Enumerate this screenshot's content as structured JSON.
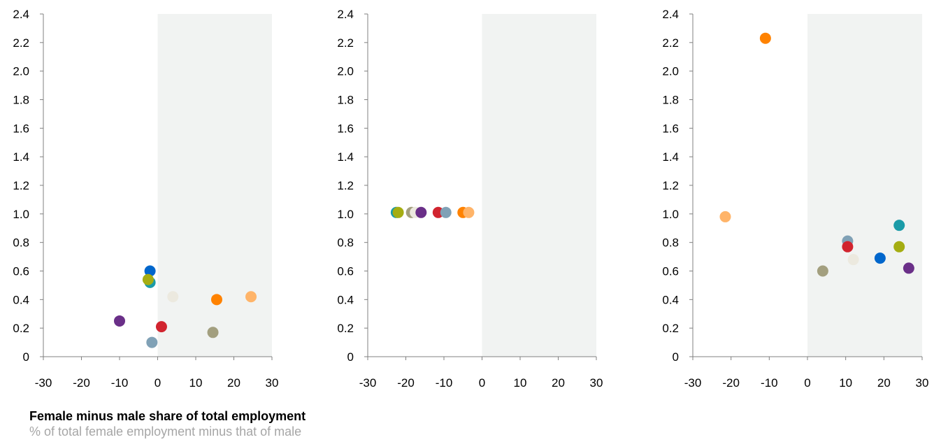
{
  "caption": {
    "title": "Female minus male share of total employment",
    "subtitle": "% of total female employment minus that of male"
  },
  "colors": {
    "shade": "#f1f3f2",
    "axis": "#808080",
    "palette": [
      "#0066cc",
      "#1b9ba8",
      "#a5ad12",
      "#ece9df",
      "#ff8200",
      "#ffb469",
      "#d1242f",
      "#80a1b6",
      "#a39f7f",
      "#6a2f88"
    ]
  },
  "chart_data": [
    {
      "type": "scatter",
      "xlim": [
        -30,
        30
      ],
      "ylim": [
        0,
        2.4
      ],
      "x_ticks": [
        "-30",
        "-20",
        "-10",
        "0",
        "10",
        "20",
        "30"
      ],
      "y_ticks": [
        "0",
        "0.2",
        "0.4",
        "0.6",
        "0.8",
        "1.0",
        "1.2",
        "1.4",
        "1.6",
        "1.8",
        "2.0",
        "2.2",
        "2.4"
      ],
      "shaded_region": "x > 0",
      "points": [
        {
          "x": -2,
          "y": 0.6,
          "color": "#0066cc"
        },
        {
          "x": -2,
          "y": 0.52,
          "color": "#1b9ba8"
        },
        {
          "x": -2.5,
          "y": 0.54,
          "color": "#a5ad12"
        },
        {
          "x": 4,
          "y": 0.42,
          "color": "#ece9df"
        },
        {
          "x": 15.5,
          "y": 0.4,
          "color": "#ff8200"
        },
        {
          "x": 24.5,
          "y": 0.42,
          "color": "#ffb469"
        },
        {
          "x": 1,
          "y": 0.21,
          "color": "#d1242f"
        },
        {
          "x": -1.5,
          "y": 0.1,
          "color": "#80a1b6"
        },
        {
          "x": 14.5,
          "y": 0.17,
          "color": "#a39f7f"
        },
        {
          "x": -10,
          "y": 0.25,
          "color": "#6a2f88"
        }
      ]
    },
    {
      "type": "scatter",
      "xlim": [
        -30,
        30
      ],
      "ylim": [
        0,
        2.4
      ],
      "x_ticks": [
        "-30",
        "-20",
        "-10",
        "0",
        "10",
        "20",
        "30"
      ],
      "y_ticks": [
        "0",
        "0.2",
        "0.4",
        "0.6",
        "0.8",
        "1.0",
        "1.2",
        "1.4",
        "1.6",
        "1.8",
        "2.0",
        "2.2",
        "2.4"
      ],
      "shaded_region": "x > 0",
      "points": [
        {
          "x": -22.5,
          "y": 1.01,
          "color": "#1b9ba8"
        },
        {
          "x": -22,
          "y": 1.01,
          "color": "#a5ad12"
        },
        {
          "x": -18.5,
          "y": 1.01,
          "color": "#a39f7f"
        },
        {
          "x": -17.5,
          "y": 1.01,
          "color": "#ece9df"
        },
        {
          "x": -16,
          "y": 1.01,
          "color": "#6a2f88"
        },
        {
          "x": -11.5,
          "y": 1.01,
          "color": "#d1242f"
        },
        {
          "x": -9.5,
          "y": 1.01,
          "color": "#80a1b6"
        },
        {
          "x": -5,
          "y": 1.01,
          "color": "#ff8200"
        },
        {
          "x": -3.5,
          "y": 1.01,
          "color": "#ffb469"
        }
      ]
    },
    {
      "type": "scatter",
      "xlim": [
        -30,
        30
      ],
      "ylim": [
        0,
        2.4
      ],
      "x_ticks": [
        "-30",
        "-20",
        "-10",
        "0",
        "10",
        "20",
        "30"
      ],
      "y_ticks": [
        "0",
        "0.2",
        "0.4",
        "0.6",
        "0.8",
        "1.0",
        "1.2",
        "1.4",
        "1.6",
        "1.8",
        "2.0",
        "2.2",
        "2.4"
      ],
      "shaded_region": "x > 0",
      "points": [
        {
          "x": -11,
          "y": 2.23,
          "color": "#ff8200"
        },
        {
          "x": -21.5,
          "y": 0.98,
          "color": "#ffb469"
        },
        {
          "x": 24,
          "y": 0.92,
          "color": "#1b9ba8"
        },
        {
          "x": 10.5,
          "y": 0.81,
          "color": "#80a1b6"
        },
        {
          "x": 10.5,
          "y": 0.77,
          "color": "#d1242f"
        },
        {
          "x": 24,
          "y": 0.77,
          "color": "#a5ad12"
        },
        {
          "x": 12,
          "y": 0.68,
          "color": "#ece9df"
        },
        {
          "x": 19,
          "y": 0.69,
          "color": "#0066cc"
        },
        {
          "x": 26.5,
          "y": 0.62,
          "color": "#6a2f88"
        },
        {
          "x": 4,
          "y": 0.6,
          "color": "#a39f7f"
        }
      ]
    }
  ]
}
